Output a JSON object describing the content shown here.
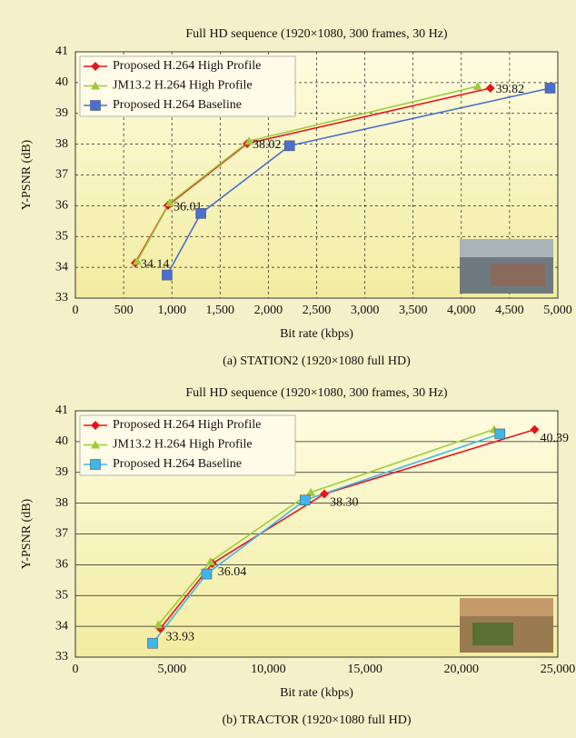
{
  "chart_data": [
    {
      "type": "line",
      "title": "Full HD sequence (1920×1080, 300 frames, 30 Hz)",
      "x_label": "Bit rate (kbps)",
      "y_label": "Y-PSNR (dB)",
      "caption": "(a) STATION2 (1920×1080 full HD)",
      "xlim": [
        0,
        5000
      ],
      "ylim": [
        33,
        41
      ],
      "xticks": [
        0,
        500,
        {
          "value": 1000,
          "label": "1,000"
        },
        {
          "value": 1500,
          "label": "1,500"
        },
        {
          "value": 2000,
          "label": "2,000"
        },
        {
          "value": 2500,
          "label": "2,500"
        },
        {
          "value": 3000,
          "label": "3,000"
        },
        {
          "value": 3500,
          "label": "3,500"
        },
        {
          "value": 4000,
          "label": "4,000"
        },
        {
          "value": 4500,
          "label": "4,500"
        },
        {
          "value": 5000,
          "label": "5,000"
        }
      ],
      "yticks": [
        33,
        34,
        35,
        36,
        37,
        38,
        39,
        40,
        41
      ],
      "grid": true,
      "grid_dashed": true,
      "grid_vertical": true,
      "legend": "upper-left",
      "series": [
        {
          "name": "Proposed H.264 High Profile",
          "color": "#e8141c",
          "marker": "diamond",
          "x": [
            620,
            960,
            1780,
            4300
          ],
          "values": [
            34.14,
            36.01,
            38.02,
            39.82
          ],
          "value_labels": [
            "34.14",
            "36.01",
            "38.02",
            "39.82"
          ]
        },
        {
          "name": "JM13.2 H.264 High Profile",
          "color": "#9ccc3c",
          "marker": "triangle",
          "x": [
            640,
            980,
            1800,
            4170
          ],
          "values": [
            34.2,
            36.1,
            38.1,
            39.88
          ]
        },
        {
          "name": "Proposed H.264 Baseline",
          "color": "#4a6fd0",
          "marker": "square",
          "x": [
            950,
            1300,
            2220,
            4920
          ],
          "values": [
            33.75,
            35.75,
            37.95,
            39.82
          ]
        }
      ]
    },
    {
      "type": "line",
      "title": "Full HD sequence (1920×1080, 300 frames, 30 Hz)",
      "x_label": "Bit rate (kbps)",
      "y_label": "Y-PSNR (dB)",
      "caption": "(b) TRACTOR (1920×1080 full HD)",
      "xlim": [
        0,
        25000
      ],
      "ylim": [
        33,
        41
      ],
      "xticks": [
        0,
        {
          "value": 5000,
          "label": "5,000"
        },
        {
          "value": 10000,
          "label": "10,000"
        },
        {
          "value": 15000,
          "label": "15,000"
        },
        {
          "value": 20000,
          "label": "20,000"
        },
        {
          "value": 25000,
          "label": "25,000"
        }
      ],
      "yticks": [
        33,
        34,
        35,
        36,
        37,
        38,
        39,
        40,
        41
      ],
      "grid": true,
      "grid_dashed": false,
      "grid_vertical": false,
      "legend": "upper-left",
      "series": [
        {
          "name": "Proposed H.264 High Profile",
          "color": "#e8141c",
          "marker": "diamond",
          "x": [
            4400,
            7100,
            12900,
            23800
          ],
          "values": [
            33.93,
            36.04,
            38.3,
            40.39
          ],
          "value_labels": [
            "33.93",
            "36.04",
            "38.30",
            "40.39"
          ]
        },
        {
          "name": "JM13.2 H.264 High Profile",
          "color": "#9ccc3c",
          "marker": "triangle",
          "x": [
            4300,
            7000,
            12200,
            21700
          ],
          "values": [
            34.05,
            36.1,
            38.35,
            40.4
          ]
        },
        {
          "name": "Proposed H.264 Baseline",
          "color": "#3fb6e8",
          "marker": "square",
          "x": [
            4000,
            6800,
            11900,
            22000
          ],
          "values": [
            33.45,
            35.7,
            38.1,
            40.25
          ]
        }
      ]
    }
  ]
}
